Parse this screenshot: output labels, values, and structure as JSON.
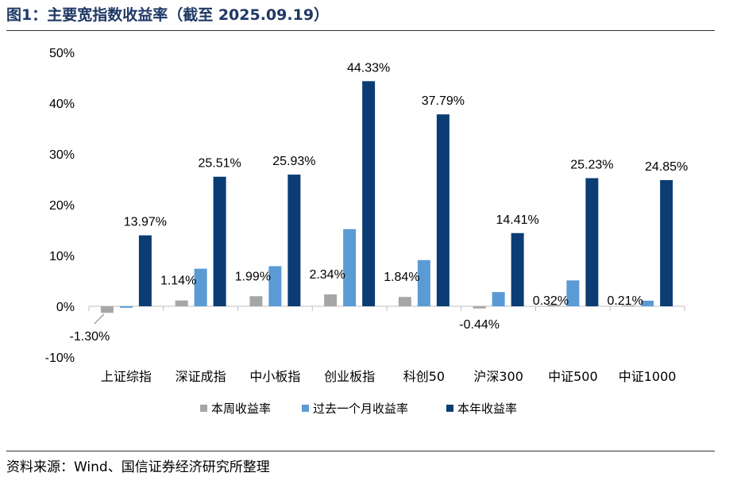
{
  "header": {
    "title": "图1：主要宽指数收益率（截至 2025.09.19）"
  },
  "footer": {
    "source": "资料来源：Wind、国信证券经济研究所整理"
  },
  "colors": {
    "weekly": "#a6a6a6",
    "monthly": "#5b9bd5",
    "ytd": "#0b3c74"
  },
  "chart_data": {
    "type": "bar",
    "categories": [
      "上证综指",
      "深证成指",
      "中小板指",
      "创业板指",
      "科创50",
      "沪深300",
      "中证500",
      "中证1000"
    ],
    "series": [
      {
        "name": "本周收益率",
        "values": [
          -1.3,
          1.14,
          1.99,
          2.34,
          1.84,
          -0.44,
          0.32,
          0.21
        ]
      },
      {
        "name": "过去一个月收益率",
        "values": [
          -0.3,
          7.4,
          7.9,
          15.2,
          9.1,
          2.8,
          5.1,
          1.1
        ]
      },
      {
        "name": "本年收益率",
        "values": [
          13.97,
          25.51,
          25.93,
          44.33,
          37.79,
          14.41,
          25.23,
          24.85
        ]
      }
    ],
    "data_labels": {
      "本周收益率": [
        "-1.30%",
        "1.14%",
        "1.99%",
        "2.34%",
        "1.84%",
        "-0.44%",
        "0.32%",
        "0.21%"
      ],
      "本年收益率": [
        "13.97%",
        "25.51%",
        "25.93%",
        "44.33%",
        "37.79%",
        "14.41%",
        "25.23%",
        "24.85%"
      ]
    },
    "yticks": [
      "50%",
      "40%",
      "30%",
      "20%",
      "10%",
      "0%",
      "-10%"
    ],
    "ytick_values": [
      50,
      40,
      30,
      20,
      10,
      0,
      -10
    ],
    "ylim": [
      -10,
      50
    ],
    "grid": false,
    "legend": "bottom",
    "xlabel": "",
    "ylabel": ""
  }
}
